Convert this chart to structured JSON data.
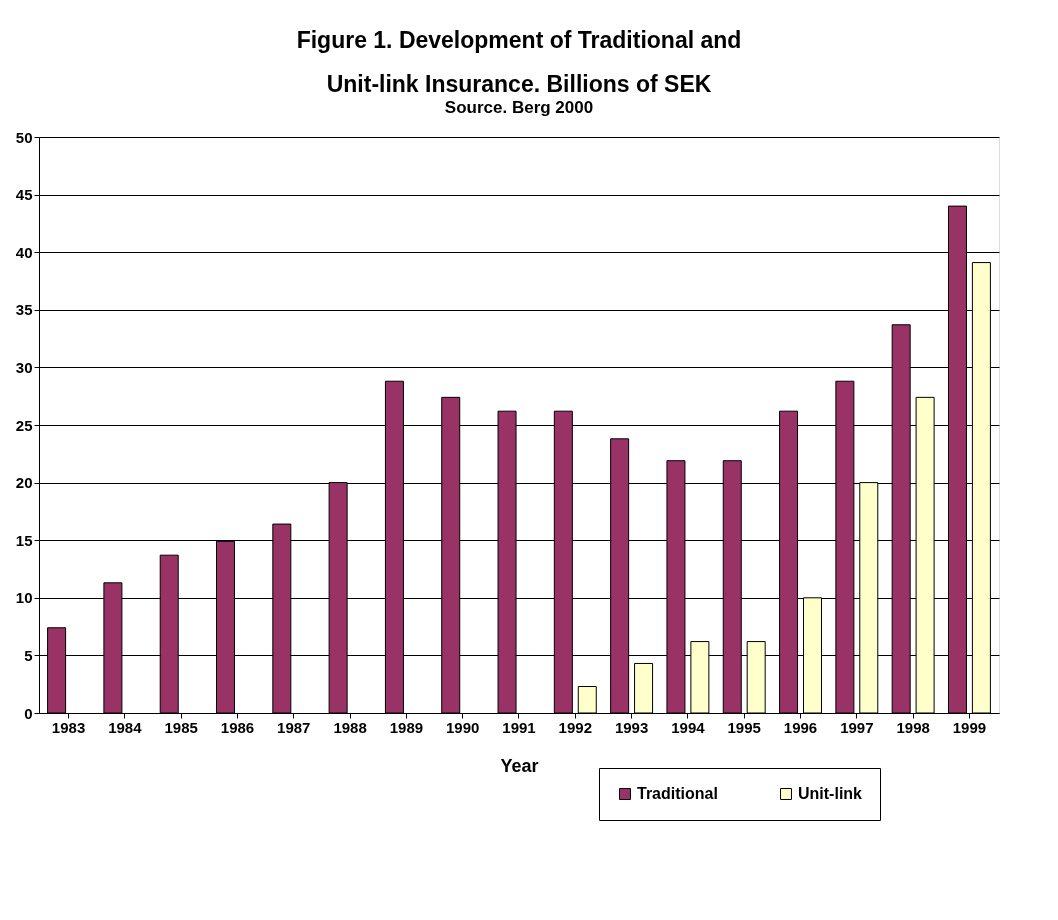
{
  "chart_data": {
    "type": "bar",
    "title": "Figure 1.  Development of Traditional and Unit-link Insurance.  Billions of SEK",
    "subtitle": "Source. Berg 2000",
    "xlabel": "Year",
    "categories": [
      "1983",
      "1984",
      "1985",
      "1986",
      "1987",
      "1988",
      "1989",
      "1990",
      "1991",
      "1992",
      "1993",
      "1994",
      "1995",
      "1996",
      "1997",
      "1998",
      "1999"
    ],
    "series": [
      {
        "name": "Traditional",
        "color": "#993366",
        "values": [
          7.4,
          11.3,
          13.7,
          14.9,
          16.4,
          20.0,
          28.8,
          27.4,
          26.2,
          26.2,
          23.8,
          21.9,
          21.9,
          26.2,
          28.8,
          33.7,
          44.0
        ]
      },
      {
        "name": "Unit-link",
        "color": "#ffffcc",
        "values": [
          null,
          null,
          null,
          null,
          null,
          null,
          null,
          null,
          null,
          2.3,
          4.3,
          6.2,
          6.2,
          10.0,
          20.0,
          27.4,
          39.1
        ]
      }
    ],
    "ylim": [
      0,
      50
    ],
    "yticks": [
      0,
      5,
      10,
      15,
      20,
      25,
      30,
      35,
      40,
      45,
      50
    ],
    "grid": "y",
    "legend": "bottom right"
  }
}
